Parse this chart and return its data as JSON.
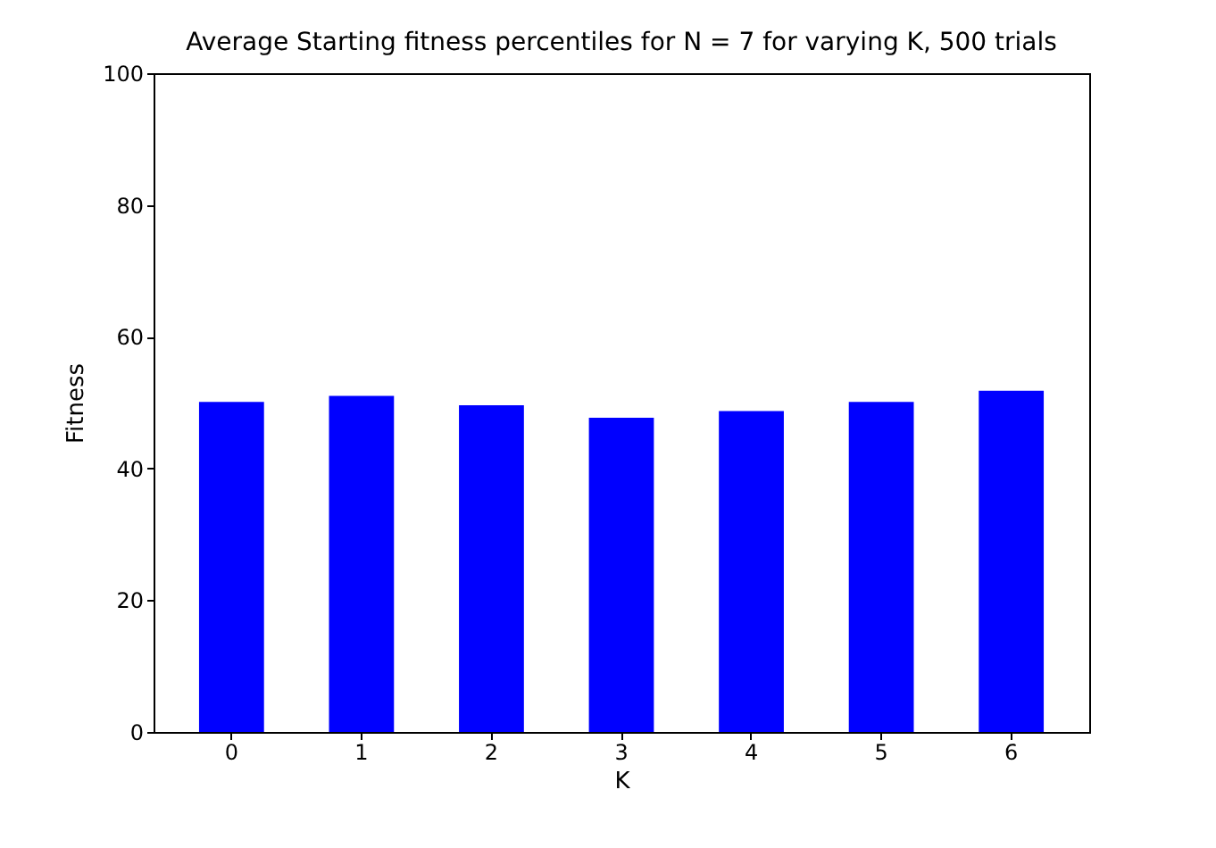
{
  "chart_data": {
    "type": "bar",
    "title": "Average Starting fitness percentiles for N = 7 for varying K, 500 trials",
    "xlabel": "K",
    "ylabel": "Fitness",
    "categories": [
      "0",
      "1",
      "2",
      "3",
      "4",
      "5",
      "6"
    ],
    "values": [
      50.1,
      51.0,
      49.6,
      47.7,
      48.7,
      50.1,
      51.8
    ],
    "color": "#0000ff",
    "ylim": [
      0,
      100
    ],
    "yticks": [
      0,
      20,
      40,
      60,
      80,
      100
    ],
    "grid": false
  }
}
